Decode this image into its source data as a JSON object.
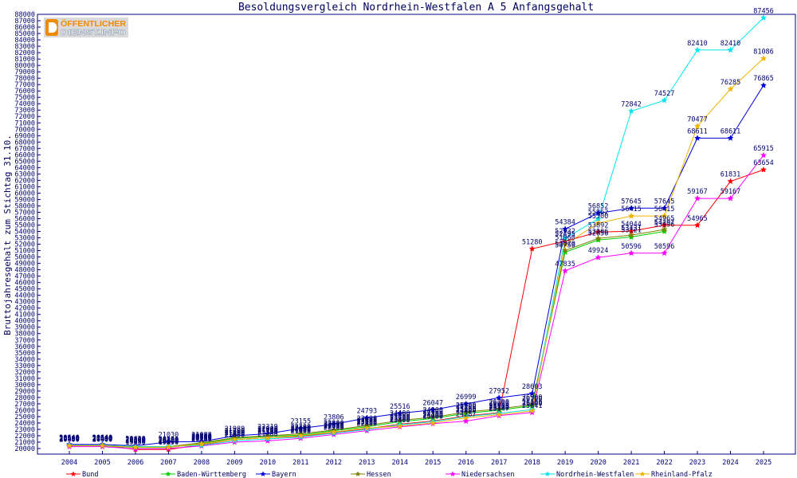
{
  "logo": {
    "line1": "ÖFFENTLICHER",
    "line2": "DIENST.INFO",
    "accent_color": "#f08a00"
  },
  "chart_data": {
    "type": "line",
    "title": "Besoldungsvergleich Nordrhein-Westfalen A 5 Anfangsgehalt",
    "xlabel": "",
    "ylabel": "Bruttojahresgehalt zum Stichtag 31.10.",
    "ylim": [
      20000,
      88000
    ],
    "ytick_interval": 1000,
    "grid": false,
    "legend_placement": "bottom",
    "data_labels": true,
    "x": [
      2004,
      2005,
      2006,
      2007,
      2008,
      2009,
      2010,
      2011,
      2012,
      2013,
      2014,
      2015,
      2016,
      2017,
      2018,
      2019,
      2020,
      2021,
      2022,
      2023,
      2024,
      2025
    ],
    "series": [
      {
        "name": "Bund",
        "color": "#ff0000",
        "values": [
          20540,
          20540,
          19850,
          19850,
          20600,
          21400,
          21700,
          21900,
          22500,
          23100,
          23800,
          24300,
          25100,
          25600,
          51280,
          52495,
          53892,
          54044,
          54965,
          54965,
          61831,
          63654
        ]
      },
      {
        "name": "Baden-Württemberg",
        "color": "#00d000",
        "values": [
          20400,
          20400,
          20150,
          20150,
          20800,
          21600,
          21900,
          22100,
          22800,
          23400,
          24200,
          24700,
          25500,
          26000,
          26700,
          50750,
          52656,
          53121,
          53996,
          null,
          null,
          null
        ]
      },
      {
        "name": "Bayern",
        "color": "#0000dd",
        "values": [
          20640,
          20640,
          20420,
          21030,
          21088,
          21989,
          22319,
          23155,
          23806,
          24793,
          25516,
          26047,
          26999,
          27952,
          28603,
          54384,
          56852,
          57645,
          57645,
          68611,
          68611,
          76865
        ]
      },
      {
        "name": "Hessen",
        "color": "#808000",
        "values": [
          20500,
          20500,
          20300,
          20300,
          20900,
          21700,
          22000,
          22300,
          22900,
          23600,
          24400,
          24900,
          25700,
          26200,
          26900,
          51020,
          52906,
          53421,
          54297,
          null,
          null,
          null
        ]
      },
      {
        "name": "Niedersachsen",
        "color": "#ff00ff",
        "values": [
          20300,
          20300,
          19950,
          20000,
          20400,
          21000,
          21200,
          21600,
          22200,
          22800,
          23400,
          23900,
          24287,
          25147,
          25641,
          47835,
          49924,
          50596,
          50596,
          59167,
          59167,
          65915
        ]
      },
      {
        "name": "Nordrhein-Westfalen",
        "color": "#00e5ee",
        "values": [
          20500,
          20500,
          20300,
          20300,
          20500,
          21200,
          21500,
          21800,
          22400,
          23000,
          23700,
          24200,
          25000,
          25500,
          26100,
          52932,
          55962,
          72842,
          74527,
          82410,
          82410,
          87456
        ]
      },
      {
        "name": "Rheinland-Pfalz",
        "color": "#f0b400",
        "values": [
          20450,
          20450,
          20200,
          20200,
          20700,
          21400,
          21700,
          22000,
          22600,
          23200,
          23500,
          24000,
          24800,
          25300,
          25900,
          51960,
          55300,
          56415,
          56415,
          70477,
          76285,
          81086
        ]
      }
    ]
  }
}
